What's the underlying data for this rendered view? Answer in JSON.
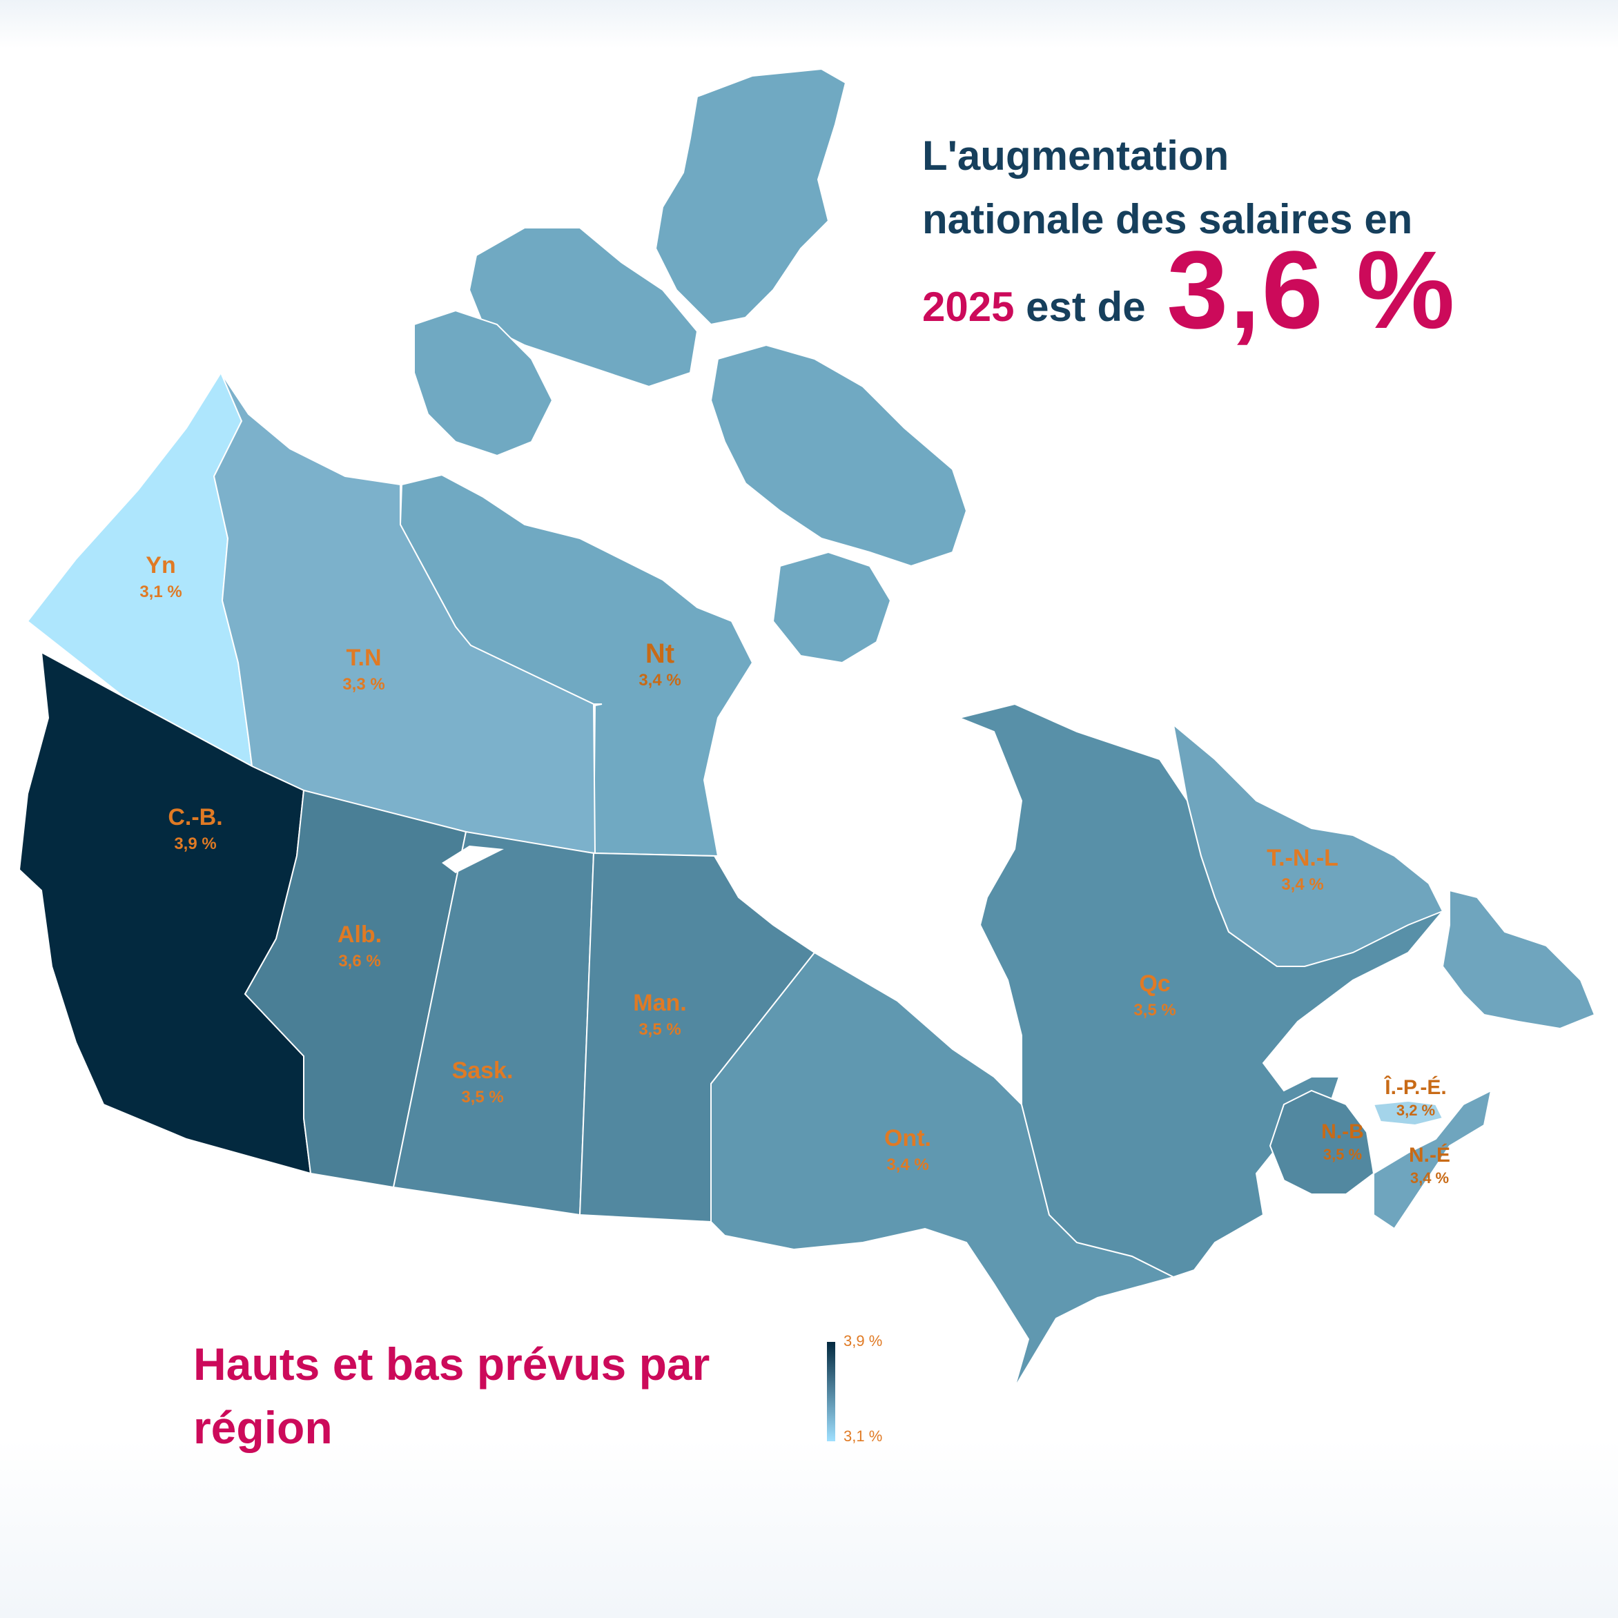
{
  "headline": {
    "line1": "L'augmentation",
    "line2": "nationale des salaires en",
    "year": "2025",
    "connector": "est de",
    "value": "3,6 %"
  },
  "subtitle": "Hauts et bas prévus par région",
  "legend": {
    "max_label": "3,9 %",
    "min_label": "3,1 %",
    "max_value": 3.9,
    "min_value": 3.1,
    "color_max": "#03293f",
    "color_min": "#aee6fd"
  },
  "regions": [
    {
      "abbr": "Yn",
      "value_label": "3,1 %",
      "value": 3.1,
      "color": "#aee6fd"
    },
    {
      "abbr": "T.N",
      "value_label": "3,3 %",
      "value": 3.3,
      "color": "#7cb1cb"
    },
    {
      "abbr": "Nt",
      "value_label": "3,4 %",
      "value": 3.4,
      "color": "#70a9c2"
    },
    {
      "abbr": "C.-B.",
      "value_label": "3,9 %",
      "value": 3.9,
      "color": "#03293f"
    },
    {
      "abbr": "Alb.",
      "value_label": "3,6 %",
      "value": 3.6,
      "color": "#4a7f96"
    },
    {
      "abbr": "Sask.",
      "value_label": "3,5 %",
      "value": 3.5,
      "color": "#5288a0"
    },
    {
      "abbr": "Man.",
      "value_label": "3,5 %",
      "value": 3.5,
      "color": "#5288a0"
    },
    {
      "abbr": "Ont.",
      "value_label": "3,4 %",
      "value": 3.4,
      "color": "#6098b0"
    },
    {
      "abbr": "Qc",
      "value_label": "3,5 %",
      "value": 3.5,
      "color": "#5890a8"
    },
    {
      "abbr": "T.-N.-L",
      "value_label": "3,4 %",
      "value": 3.4,
      "color": "#6fa5be"
    },
    {
      "abbr": "Î.-P.-É.",
      "value_label": "3,2 %",
      "value": 3.2,
      "color": "#a4d4ea"
    },
    {
      "abbr": "N.-B",
      "value_label": "3,5 %",
      "value": 3.5,
      "color": "#5288a0"
    },
    {
      "abbr": "N.-É",
      "value_label": "3,4 %",
      "value": 3.4,
      "color": "#6fa5be"
    }
  ]
}
